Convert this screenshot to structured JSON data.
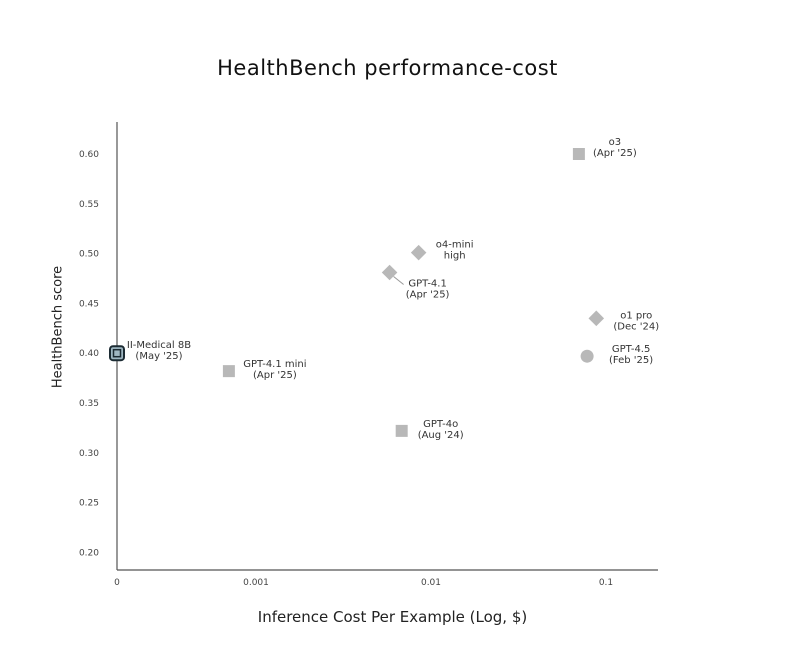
{
  "chart_data": {
    "type": "scatter",
    "title": "HealthBench performance-cost",
    "xlabel": "Inference Cost Per Example (Log, $)",
    "ylabel": "HealthBench score",
    "x_scale": "log",
    "x_ticks": [
      "0",
      "0.001",
      "0.01",
      "0.1"
    ],
    "y_ticks": [
      "0.60",
      "0.55",
      "0.50",
      "0.45",
      "0.40",
      "0.35",
      "0.30",
      "0.25",
      "0.20"
    ],
    "ylim": [
      0.2,
      0.62
    ],
    "grid": false,
    "points": [
      {
        "label": [
          "o3",
          "(Apr '25)"
        ],
        "x": 0.07,
        "y": 0.6,
        "marker": "square"
      },
      {
        "label": [
          "o4-mini",
          "high"
        ],
        "x": 0.0085,
        "y": 0.501,
        "marker": "diamond"
      },
      {
        "label": [
          "GPT-4.1",
          "(Apr '25)"
        ],
        "x": 0.0058,
        "y": 0.481,
        "marker": "diamond"
      },
      {
        "label": [
          "o1 pro",
          "(Dec '24)"
        ],
        "x": 0.088,
        "y": 0.435,
        "marker": "diamond"
      },
      {
        "label": [
          "GPT-4.5",
          "(Feb '25)"
        ],
        "x": 0.078,
        "y": 0.397,
        "marker": "circle"
      },
      {
        "label": [
          "II-Medical 8B",
          "(May '25)"
        ],
        "x": 0,
        "y": 0.4,
        "marker": "highlight-square"
      },
      {
        "label": [
          "GPT-4.1 mini",
          "(Apr '25)"
        ],
        "x": 0.0007,
        "y": 0.382,
        "marker": "square"
      },
      {
        "label": [
          "GPT-4o",
          "(Aug '24)"
        ],
        "x": 0.0068,
        "y": 0.322,
        "marker": "square"
      }
    ],
    "colors": {
      "marker": "#b8b8b8",
      "highlight_fill": "#9fb7c2",
      "highlight_edge": "#1c2b33",
      "axis": "#555555"
    }
  }
}
